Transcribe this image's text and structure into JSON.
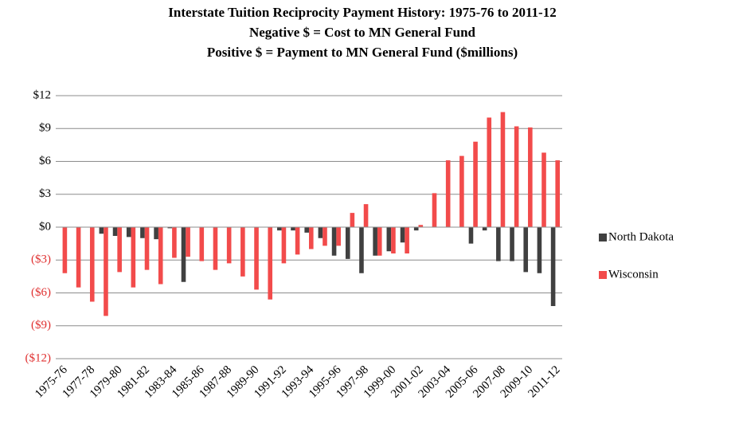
{
  "chart_data": {
    "type": "bar",
    "title": "Interstate Tuition Reciprocity Payment History: 1975-76 to 2011-12",
    "subtitle": [
      "Negative $ = Cost to MN General Fund",
      "Positive $ = Payment to MN General Fund ($millions)"
    ],
    "categories": [
      "1975-76",
      null,
      "1977-78",
      null,
      "1979-80",
      null,
      "1981-82",
      null,
      "1983-84",
      null,
      "1985-86",
      null,
      "1987-88",
      null,
      "1989-90",
      null,
      "1991-92",
      null,
      "1993-94",
      null,
      "1995-96",
      null,
      "1997-98",
      null,
      "1999-00",
      null,
      "2001-02",
      null,
      "2003-04",
      null,
      "2005-06",
      null,
      "2007-08",
      null,
      "2009-10",
      null,
      "2011-12"
    ],
    "series": [
      {
        "name": "North Dakota",
        "color": "#404040",
        "values": [
          0,
          0,
          0,
          -0.6,
          -0.8,
          -0.9,
          -1.0,
          -1.1,
          -0.1,
          -5.0,
          0,
          0,
          0,
          0,
          0,
          0,
          -0.3,
          -0.3,
          -0.5,
          -1.0,
          -2.6,
          -2.9,
          -4.2,
          -2.6,
          -2.2,
          -1.4,
          -0.3,
          0,
          0,
          0,
          -1.5,
          -0.3,
          -3.1,
          -3.1,
          -4.1,
          -4.2,
          -7.2
        ]
      },
      {
        "name": "Wisconsin",
        "color": "#f24b4b",
        "values": [
          -4.2,
          -5.5,
          -6.8,
          -8.1,
          -4.1,
          -5.5,
          -3.9,
          -5.2,
          -2.8,
          -2.7,
          -3.1,
          -3.9,
          -3.3,
          -4.5,
          -5.7,
          -6.6,
          -3.3,
          -2.5,
          -2.0,
          -1.7,
          -1.7,
          1.3,
          2.1,
          -2.6,
          -2.4,
          -2.4,
          0.2,
          3.1,
          6.1,
          6.5,
          7.8,
          10.0,
          10.5,
          9.2,
          9.1,
          6.8,
          6.1
        ]
      }
    ],
    "ylim": [
      -12,
      12
    ],
    "yticks": [
      {
        "value": 12,
        "label": "$12"
      },
      {
        "value": 9,
        "label": "$9"
      },
      {
        "value": 6,
        "label": "$6"
      },
      {
        "value": 3,
        "label": "$3"
      },
      {
        "value": 0,
        "label": "$0"
      },
      {
        "value": -3,
        "label": "($3)"
      },
      {
        "value": -6,
        "label": "($6)"
      },
      {
        "value": -9,
        "label": "($9)"
      },
      {
        "value": -12,
        "label": "($12)"
      }
    ],
    "negative_tick_color": "#e03030",
    "grid": true,
    "legend": "right"
  }
}
